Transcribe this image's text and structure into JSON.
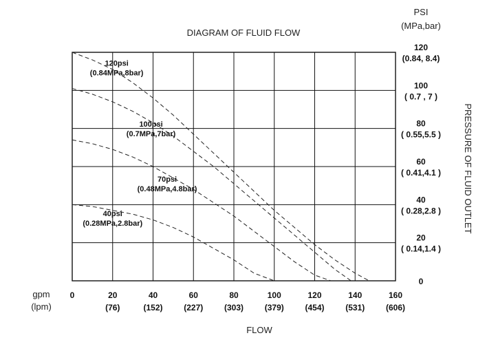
{
  "chart_data": {
    "type": "line",
    "title": "DIAGRAM OF FLUID FLOW",
    "xlabel": "FLOW",
    "ylabel": "PRESSURE OF FLUID OUTLET",
    "x_unit_primary": "gpm",
    "x_unit_secondary": "(lpm)",
    "y_unit_primary": "PSI",
    "y_unit_secondary": "(MPa,bar)",
    "xlim": [
      0,
      160
    ],
    "ylim": [
      0,
      120
    ],
    "grid": true,
    "x_ticks": [
      {
        "v": 0,
        "main": "0",
        "sub": ""
      },
      {
        "v": 20,
        "main": "20",
        "sub": "(76)"
      },
      {
        "v": 40,
        "main": "40",
        "sub": "(152)"
      },
      {
        "v": 60,
        "main": "60",
        "sub": "(227)"
      },
      {
        "v": 80,
        "main": "80",
        "sub": "(303)"
      },
      {
        "v": 100,
        "main": "100",
        "sub": "(379)"
      },
      {
        "v": 120,
        "main": "120",
        "sub": "(454)"
      },
      {
        "v": 140,
        "main": "140",
        "sub": "(531)"
      },
      {
        "v": 160,
        "main": "160",
        "sub": "(606)"
      }
    ],
    "y_ticks": [
      {
        "v": 0,
        "main": "0",
        "sub": ""
      },
      {
        "v": 20,
        "main": "20",
        "sub": "( 0.14,1.4 )"
      },
      {
        "v": 40,
        "main": "40",
        "sub": "( 0.28,2.8 )"
      },
      {
        "v": 60,
        "main": "60",
        "sub": "( 0.41,4.1 )"
      },
      {
        "v": 80,
        "main": "80",
        "sub": "( 0.55,5.5 )"
      },
      {
        "v": 100,
        "main": "100",
        "sub": "( 0.7 , 7 )"
      },
      {
        "v": 120,
        "main": "120",
        "sub": "(0.84, 8.4)"
      }
    ],
    "series": [
      {
        "name": "120psi",
        "sub": "(0.84MPa,8bar)",
        "x": [
          0,
          10,
          20,
          30,
          40,
          50,
          60,
          70,
          80,
          90,
          100,
          110,
          120,
          130,
          140,
          147
        ],
        "y": [
          120,
          116,
          111,
          104,
          96,
          87,
          77,
          67,
          57,
          47,
          37,
          28,
          19,
          11,
          4,
          0
        ]
      },
      {
        "name": "100psi",
        "sub": "(0.7MPa,7bar)",
        "x": [
          0,
          10,
          20,
          30,
          40,
          50,
          60,
          70,
          80,
          90,
          100,
          110,
          120,
          130,
          138
        ],
        "y": [
          101,
          98,
          94,
          89,
          83,
          76,
          68,
          60,
          51,
          42,
          33,
          24,
          15,
          6,
          0
        ]
      },
      {
        "name": "70psi",
        "sub": "(0.48MPa,4.8bar)",
        "x": [
          0,
          10,
          20,
          30,
          40,
          50,
          60,
          70,
          80,
          90,
          100,
          110,
          120,
          128
        ],
        "y": [
          74,
          72,
          69,
          65,
          60,
          54,
          48,
          41,
          34,
          26,
          18,
          10,
          3,
          0
        ]
      },
      {
        "name": "40psi",
        "sub": "(0.28MPa,2.8bar)",
        "x": [
          0,
          10,
          20,
          30,
          40,
          50,
          60,
          70,
          80,
          90,
          100
        ],
        "y": [
          40,
          39,
          37,
          35,
          32,
          28,
          23,
          17,
          11,
          4,
          0
        ]
      }
    ],
    "annotations": [
      {
        "main": "120psi",
        "sub": "(0.84MPa,8bar)",
        "x": 22,
        "y": 113
      },
      {
        "main": "100psi",
        "sub": "(0.7MPa,7bar)",
        "x": 39,
        "y": 81
      },
      {
        "main": "70psi",
        "sub": "(0.48MPa,4.8bar)",
        "x": 47,
        "y": 52
      },
      {
        "main": "40psi",
        "sub": "(0.28MPa,2.8bar)",
        "x": 20,
        "y": 34
      }
    ]
  }
}
